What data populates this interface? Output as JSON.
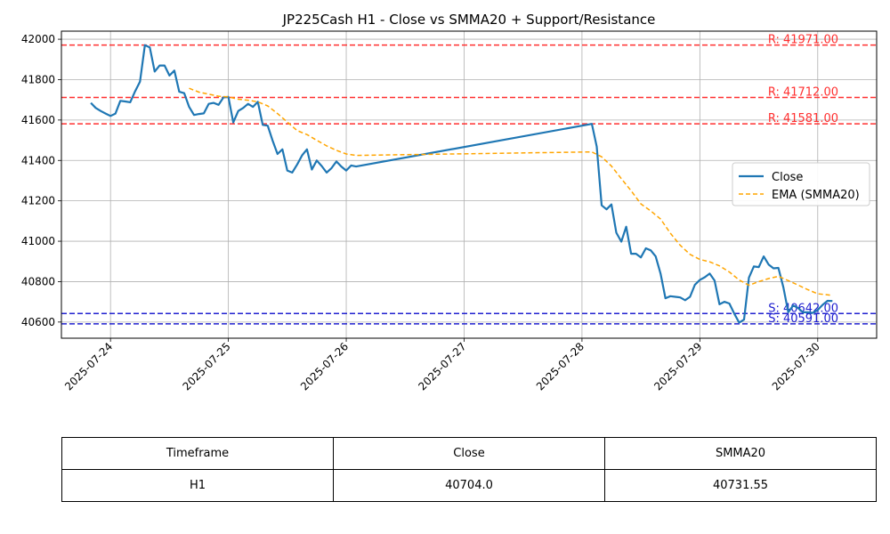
{
  "chart_data": {
    "type": "line",
    "title": "JP225Cash H1 - Close vs SMMA20 + Support/Resistance",
    "xlabel": "",
    "ylabel": "",
    "xlim": [
      "2025-07-23 14:00",
      "2025-07-30 12:00"
    ],
    "ylim": [
      40520,
      42040
    ],
    "grid": true,
    "legend_position": "center-right",
    "x_ticks": [
      "2025-07-24",
      "2025-07-25",
      "2025-07-26",
      "2025-07-27",
      "2025-07-28",
      "2025-07-29",
      "2025-07-30"
    ],
    "y_ticks": [
      40600,
      40800,
      41000,
      41200,
      41400,
      41600,
      41800,
      42000
    ],
    "series": [
      {
        "name": "Close",
        "color": "#1f77b4",
        "style": "solid",
        "points": [
          [
            "2025-07-23 20:00",
            41685
          ],
          [
            "2025-07-23 21:00",
            41660
          ],
          [
            "2025-07-23 22:00",
            41645
          ],
          [
            "2025-07-23 23:00",
            41632
          ],
          [
            "2025-07-24 00:00",
            41620
          ],
          [
            "2025-07-24 01:00",
            41632
          ],
          [
            "2025-07-24 02:00",
            41695
          ],
          [
            "2025-07-24 03:00",
            41692
          ],
          [
            "2025-07-24 04:00",
            41688
          ],
          [
            "2025-07-24 05:00",
            41742
          ],
          [
            "2025-07-24 06:00",
            41790
          ],
          [
            "2025-07-24 07:00",
            41971
          ],
          [
            "2025-07-24 08:00",
            41960
          ],
          [
            "2025-07-24 09:00",
            41840
          ],
          [
            "2025-07-24 10:00",
            41870
          ],
          [
            "2025-07-24 11:00",
            41870
          ],
          [
            "2025-07-24 12:00",
            41820
          ],
          [
            "2025-07-24 13:00",
            41845
          ],
          [
            "2025-07-24 14:00",
            41740
          ],
          [
            "2025-07-24 15:00",
            41733
          ],
          [
            "2025-07-24 16:00",
            41665
          ],
          [
            "2025-07-24 17:00",
            41625
          ],
          [
            "2025-07-24 18:00",
            41630
          ],
          [
            "2025-07-24 19:00",
            41633
          ],
          [
            "2025-07-24 20:00",
            41680
          ],
          [
            "2025-07-24 21:00",
            41685
          ],
          [
            "2025-07-24 22:00",
            41675
          ],
          [
            "2025-07-24 23:00",
            41712
          ],
          [
            "2025-07-25 00:00",
            41715
          ],
          [
            "2025-07-25 01:00",
            41588
          ],
          [
            "2025-07-25 02:00",
            41645
          ],
          [
            "2025-07-25 03:00",
            41660
          ],
          [
            "2025-07-25 04:00",
            41680
          ],
          [
            "2025-07-25 05:00",
            41665
          ],
          [
            "2025-07-25 06:00",
            41690
          ],
          [
            "2025-07-25 07:00",
            41576
          ],
          [
            "2025-07-25 08:00",
            41572
          ],
          [
            "2025-07-25 09:00",
            41498
          ],
          [
            "2025-07-25 10:00",
            41432
          ],
          [
            "2025-07-25 11:00",
            41455
          ],
          [
            "2025-07-25 12:00",
            41350
          ],
          [
            "2025-07-25 13:00",
            41340
          ],
          [
            "2025-07-25 14:00",
            41380
          ],
          [
            "2025-07-25 15:00",
            41425
          ],
          [
            "2025-07-25 16:00",
            41455
          ],
          [
            "2025-07-25 17:00",
            41355
          ],
          [
            "2025-07-25 18:00",
            41400
          ],
          [
            "2025-07-25 19:00",
            41372
          ],
          [
            "2025-07-25 20:00",
            41340
          ],
          [
            "2025-07-25 21:00",
            41362
          ],
          [
            "2025-07-25 22:00",
            41395
          ],
          [
            "2025-07-25 23:00",
            41370
          ],
          [
            "2025-07-26 00:00",
            41350
          ],
          [
            "2025-07-26 01:00",
            41375
          ],
          [
            "2025-07-26 02:00",
            41370
          ],
          [
            "2025-07-28 02:00",
            41581
          ],
          [
            "2025-07-28 03:00",
            41468
          ],
          [
            "2025-07-28 04:00",
            41178
          ],
          [
            "2025-07-28 05:00",
            41158
          ],
          [
            "2025-07-28 06:00",
            41182
          ],
          [
            "2025-07-28 07:00",
            41042
          ],
          [
            "2025-07-28 08:00",
            40998
          ],
          [
            "2025-07-28 09:00",
            41072
          ],
          [
            "2025-07-28 10:00",
            40938
          ],
          [
            "2025-07-28 11:00",
            40938
          ],
          [
            "2025-07-28 12:00",
            40920
          ],
          [
            "2025-07-28 13:00",
            40965
          ],
          [
            "2025-07-28 14:00",
            40955
          ],
          [
            "2025-07-28 15:00",
            40925
          ],
          [
            "2025-07-28 16:00",
            40840
          ],
          [
            "2025-07-28 17:00",
            40718
          ],
          [
            "2025-07-28 18:00",
            40728
          ],
          [
            "2025-07-28 19:00",
            40725
          ],
          [
            "2025-07-28 20:00",
            40722
          ],
          [
            "2025-07-28 21:00",
            40708
          ],
          [
            "2025-07-28 22:00",
            40725
          ],
          [
            "2025-07-28 23:00",
            40785
          ],
          [
            "2025-07-29 00:00",
            40808
          ],
          [
            "2025-07-29 01:00",
            40822
          ],
          [
            "2025-07-29 02:00",
            40840
          ],
          [
            "2025-07-29 03:00",
            40805
          ],
          [
            "2025-07-29 04:00",
            40688
          ],
          [
            "2025-07-29 05:00",
            40700
          ],
          [
            "2025-07-29 06:00",
            40692
          ],
          [
            "2025-07-29 07:00",
            40642
          ],
          [
            "2025-07-29 08:00",
            40597
          ],
          [
            "2025-07-29 09:00",
            40612
          ],
          [
            "2025-07-29 10:00",
            40820
          ],
          [
            "2025-07-29 11:00",
            40875
          ],
          [
            "2025-07-29 12:00",
            40872
          ],
          [
            "2025-07-29 13:00",
            40925
          ],
          [
            "2025-07-29 14:00",
            40885
          ],
          [
            "2025-07-29 15:00",
            40866
          ],
          [
            "2025-07-29 16:00",
            40868
          ],
          [
            "2025-07-29 17:00",
            40772
          ],
          [
            "2025-07-29 18:00",
            40648
          ],
          [
            "2025-07-29 19:00",
            40682
          ],
          [
            "2025-07-29 20:00",
            40670
          ],
          [
            "2025-07-29 21:00",
            40648
          ],
          [
            "2025-07-29 22:00",
            40648
          ],
          [
            "2025-07-29 23:00",
            40645
          ],
          [
            "2025-07-30 00:00",
            40660
          ],
          [
            "2025-07-30 01:00",
            40685
          ],
          [
            "2025-07-30 02:00",
            40705
          ],
          [
            "2025-07-30 03:00",
            40704
          ]
        ]
      },
      {
        "name": "EMA (SMMA20)",
        "color": "#ffa500",
        "style": "dashed",
        "points": [
          [
            "2025-07-24 16:00",
            41757
          ],
          [
            "2025-07-24 18:00",
            41738
          ],
          [
            "2025-07-24 20:00",
            41728
          ],
          [
            "2025-07-24 22:00",
            41718
          ],
          [
            "2025-07-25 00:00",
            41715
          ],
          [
            "2025-07-25 02:00",
            41703
          ],
          [
            "2025-07-25 04:00",
            41698
          ],
          [
            "2025-07-25 06:00",
            41690
          ],
          [
            "2025-07-25 08:00",
            41670
          ],
          [
            "2025-07-25 10:00",
            41632
          ],
          [
            "2025-07-25 12:00",
            41590
          ],
          [
            "2025-07-25 14:00",
            41548
          ],
          [
            "2025-07-25 16:00",
            41528
          ],
          [
            "2025-07-25 18:00",
            41500
          ],
          [
            "2025-07-25 20:00",
            41472
          ],
          [
            "2025-07-25 22:00",
            41450
          ],
          [
            "2025-07-26 00:00",
            41432
          ],
          [
            "2025-07-26 02:00",
            41425
          ],
          [
            "2025-07-28 02:00",
            41442
          ],
          [
            "2025-07-28 04:00",
            41418
          ],
          [
            "2025-07-28 06:00",
            41372
          ],
          [
            "2025-07-28 08:00",
            41310
          ],
          [
            "2025-07-28 10:00",
            41250
          ],
          [
            "2025-07-28 12:00",
            41185
          ],
          [
            "2025-07-28 14:00",
            41150
          ],
          [
            "2025-07-28 16:00",
            41110
          ],
          [
            "2025-07-28 18:00",
            41040
          ],
          [
            "2025-07-28 20:00",
            40980
          ],
          [
            "2025-07-28 22:00",
            40935
          ],
          [
            "2025-07-29 00:00",
            40910
          ],
          [
            "2025-07-29 02:00",
            40898
          ],
          [
            "2025-07-29 04:00",
            40878
          ],
          [
            "2025-07-29 06:00",
            40848
          ],
          [
            "2025-07-29 08:00",
            40808
          ],
          [
            "2025-07-29 10:00",
            40782
          ],
          [
            "2025-07-29 12:00",
            40800
          ],
          [
            "2025-07-29 14:00",
            40815
          ],
          [
            "2025-07-29 16:00",
            40826
          ],
          [
            "2025-07-29 18:00",
            40805
          ],
          [
            "2025-07-29 20:00",
            40783
          ],
          [
            "2025-07-29 22:00",
            40760
          ],
          [
            "2025-07-30 00:00",
            40740
          ],
          [
            "2025-07-30 02:00",
            40735
          ],
          [
            "2025-07-30 03:00",
            40731.55
          ]
        ]
      }
    ],
    "levels": [
      {
        "kind": "resistance",
        "value": 41971.0,
        "label": "R: 41971.00",
        "color": "#ff3030"
      },
      {
        "kind": "resistance",
        "value": 41712.0,
        "label": "R: 41712.00",
        "color": "#ff3030"
      },
      {
        "kind": "resistance",
        "value": 41581.0,
        "label": "R: 41581.00",
        "color": "#ff3030"
      },
      {
        "kind": "support",
        "value": 40642.0,
        "label": "S: 40642.00",
        "color": "#2020d0"
      },
      {
        "kind": "support",
        "value": 40591.0,
        "label": "S: 40591.00",
        "color": "#2020d0"
      }
    ]
  },
  "table": {
    "headers": [
      "Timeframe",
      "Close",
      "SMMA20"
    ],
    "rows": [
      [
        "H1",
        "40704.0",
        "40731.55"
      ]
    ]
  }
}
